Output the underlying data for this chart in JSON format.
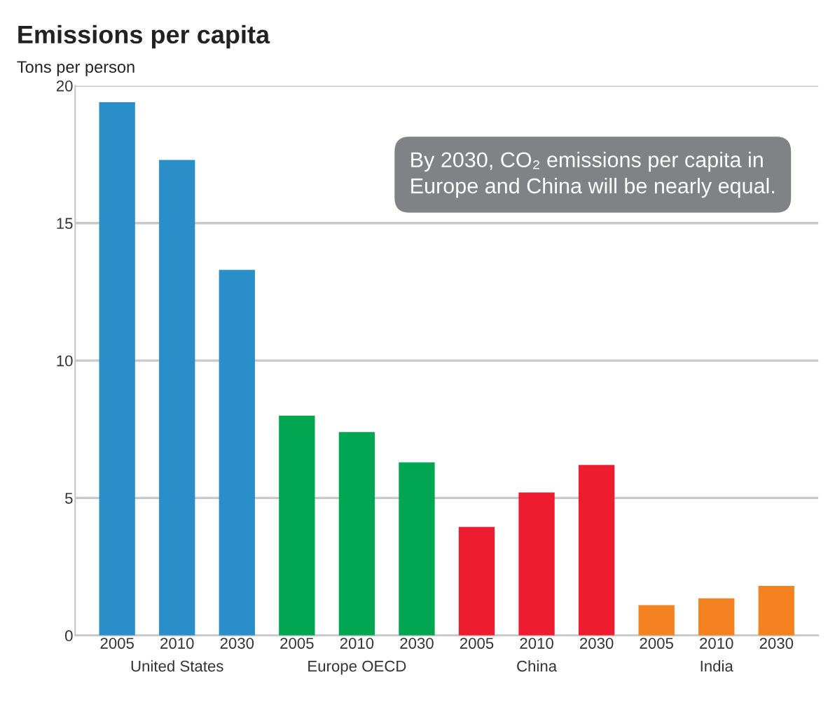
{
  "chart_data": {
    "type": "bar",
    "title": "Emissions per capita",
    "ylabel": "Tons per person",
    "categories": [
      "2005",
      "2010",
      "2030",
      "2005",
      "2010",
      "2030",
      "2005",
      "2010",
      "2030",
      "2005",
      "2010",
      "2030"
    ],
    "series": [
      {
        "name": "United States",
        "color": "#2a8fc9",
        "values": [
          19.4,
          17.3,
          13.3,
          null,
          null,
          null,
          null,
          null,
          null,
          null,
          null,
          null
        ]
      },
      {
        "name": "Europe OECD",
        "color": "#00a651",
        "values": [
          null,
          null,
          null,
          8.0,
          7.4,
          6.3,
          null,
          null,
          null,
          null,
          null,
          null
        ]
      },
      {
        "name": "China",
        "color": "#ed1c2e",
        "values": [
          null,
          null,
          null,
          null,
          null,
          null,
          3.95,
          5.2,
          6.2,
          null,
          null,
          null
        ]
      },
      {
        "name": "India",
        "color": "#f58220",
        "values": [
          null,
          null,
          null,
          null,
          null,
          null,
          null,
          null,
          null,
          1.1,
          1.35,
          1.8
        ]
      }
    ],
    "ylim": [
      0,
      20
    ],
    "yticks": [
      0,
      5,
      10,
      15,
      20
    ],
    "grid": "y",
    "legend": false,
    "annotations": [
      "By 2030, CO₂ emissions per capita in Europe and China will be nearly equal."
    ]
  }
}
